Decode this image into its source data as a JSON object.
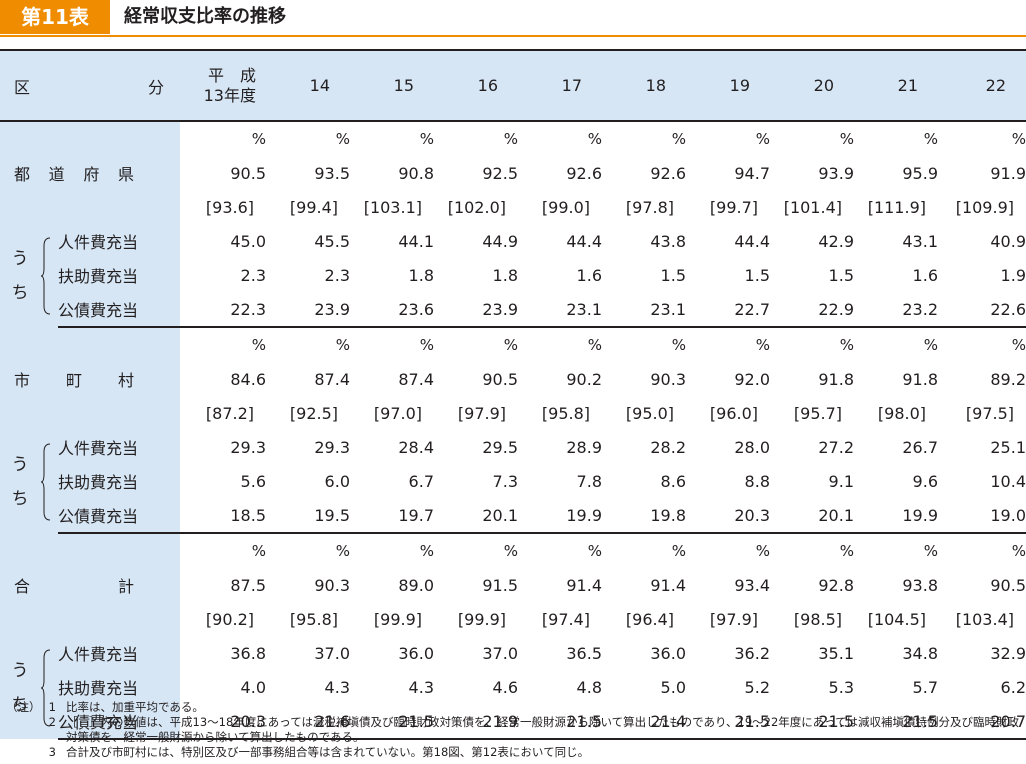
{
  "title": {
    "badge": "第11表",
    "text": "経常収支比率の推移"
  },
  "header": {
    "label_left": "区",
    "label_right": "分",
    "heisei_line1": "平　成",
    "heisei_line2": "13年度",
    "years": [
      "14",
      "15",
      "16",
      "17",
      "18",
      "19",
      "20",
      "21",
      "22"
    ]
  },
  "unit": "%",
  "sub_labels": [
    "人件費充当",
    "扶助費充当",
    "公債費充当"
  ],
  "uchi_chars": [
    "う",
    "ち"
  ],
  "groups": [
    {
      "label_chars": [
        "都",
        "道",
        "府",
        "県"
      ],
      "ratio": [
        "90.5",
        "93.5",
        "90.8",
        "92.5",
        "92.6",
        "92.6",
        "94.7",
        "93.9",
        "95.9",
        "91.9"
      ],
      "bracket": [
        "[93.6]",
        "[99.4]",
        "[103.1]",
        "[102.0]",
        "[99.0]",
        "[97.8]",
        "[99.7]",
        "[101.4]",
        "[111.9]",
        "[109.9]"
      ],
      "subs": [
        [
          "45.0",
          "45.5",
          "44.1",
          "44.9",
          "44.4",
          "43.8",
          "44.4",
          "42.9",
          "43.1",
          "40.9"
        ],
        [
          "2.3",
          "2.3",
          "1.8",
          "1.8",
          "1.6",
          "1.5",
          "1.5",
          "1.5",
          "1.6",
          "1.9"
        ],
        [
          "22.3",
          "23.9",
          "23.6",
          "23.9",
          "23.1",
          "23.1",
          "22.7",
          "22.9",
          "23.2",
          "22.6"
        ]
      ]
    },
    {
      "label_chars": [
        "市",
        "町",
        "村"
      ],
      "ratio": [
        "84.6",
        "87.4",
        "87.4",
        "90.5",
        "90.2",
        "90.3",
        "92.0",
        "91.8",
        "91.8",
        "89.2"
      ],
      "bracket": [
        "[87.2]",
        "[92.5]",
        "[97.0]",
        "[97.9]",
        "[95.8]",
        "[95.0]",
        "[96.0]",
        "[95.7]",
        "[98.0]",
        "[97.5]"
      ],
      "subs": [
        [
          "29.3",
          "29.3",
          "28.4",
          "29.5",
          "28.9",
          "28.2",
          "28.0",
          "27.2",
          "26.7",
          "25.1"
        ],
        [
          "5.6",
          "6.0",
          "6.7",
          "7.3",
          "7.8",
          "8.6",
          "8.8",
          "9.1",
          "9.6",
          "10.4"
        ],
        [
          "18.5",
          "19.5",
          "19.7",
          "20.1",
          "19.9",
          "19.8",
          "20.3",
          "20.1",
          "19.9",
          "19.0"
        ]
      ]
    },
    {
      "label_chars": [
        "合",
        "計"
      ],
      "ratio": [
        "87.5",
        "90.3",
        "89.0",
        "91.5",
        "91.4",
        "91.4",
        "93.4",
        "92.8",
        "93.8",
        "90.5"
      ],
      "bracket": [
        "[90.2]",
        "[95.8]",
        "[99.9]",
        "[99.9]",
        "[97.4]",
        "[96.4]",
        "[97.9]",
        "[98.5]",
        "[104.5]",
        "[103.4]"
      ],
      "subs": [
        [
          "36.8",
          "37.0",
          "36.0",
          "37.0",
          "36.5",
          "36.0",
          "36.2",
          "35.1",
          "34.8",
          "32.9"
        ],
        [
          "4.0",
          "4.3",
          "4.3",
          "4.6",
          "4.8",
          "5.0",
          "5.2",
          "5.3",
          "5.7",
          "6.2"
        ],
        [
          "20.3",
          "21.6",
          "21.5",
          "21.9",
          "21.5",
          "21.4",
          "21.5",
          "21.5",
          "21.5",
          "20.7"
        ]
      ]
    }
  ],
  "notes": {
    "tag": "（注）",
    "items": [
      {
        "num": "1",
        "text": "比率は、加重平均である。"
      },
      {
        "num": "2",
        "text": "［　］内の数値は、平成13〜18年度にあっては減税補塡債及び臨時財政対策債を、経常一般財源から除いて算出したものであり、19〜22年度にあっては減収補塡債特例分及び臨時財政対策債を、経常一般財源から除いて算出したものである。"
      },
      {
        "num": "3",
        "text": "合計及び市町村には、特別区及び一部事務組合等は含まれていない。第18図、第12表において同じ。"
      }
    ]
  }
}
